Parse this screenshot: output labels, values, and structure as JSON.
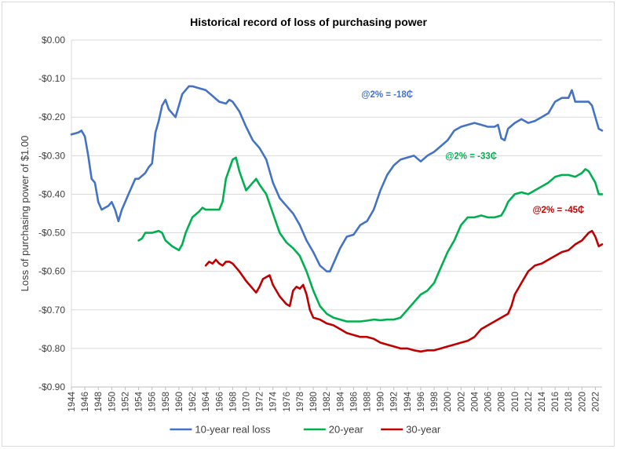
{
  "chart_data": {
    "type": "line",
    "title": "Historical record of loss of purchasing power",
    "xlabel": "",
    "ylabel": "Loss of purchasing power of $1.00",
    "xlim": [
      1944,
      2023
    ],
    "ylim": [
      -0.9,
      0.0
    ],
    "y_ticks": [
      0.0,
      -0.1,
      -0.2,
      -0.3,
      -0.4,
      -0.5,
      -0.6,
      -0.7,
      -0.8,
      -0.9
    ],
    "y_tick_labels": [
      "$0.00",
      "-$0.10",
      "-$0.20",
      "-$0.30",
      "-$0.40",
      "-$0.50",
      "-$0.60",
      "-$0.70",
      "-$0.80",
      "-$0.90"
    ],
    "x_ticks": [
      "1944",
      "1946",
      "1948",
      "1950",
      "1952",
      "1954",
      "1956",
      "1958",
      "1960",
      "1962",
      "1964",
      "1966",
      "1968",
      "1970",
      "1972",
      "1974",
      "1976",
      "1978",
      "1980",
      "1982",
      "1984",
      "1986",
      "1988",
      "1990",
      "1992",
      "1994",
      "1996",
      "1998",
      "2000",
      "2002",
      "2004",
      "2006",
      "2008",
      "2010",
      "2012",
      "2014",
      "2016",
      "2018",
      "2020",
      "2022"
    ],
    "grid": true,
    "legend_position": "bottom",
    "series": [
      {
        "name": "10-year real loss",
        "color": "#4472c4",
        "points": [
          [
            1944,
            -0.245
          ],
          [
            1945,
            -0.24
          ],
          [
            1945.5,
            -0.235
          ],
          [
            1946,
            -0.25
          ],
          [
            1946.5,
            -0.3
          ],
          [
            1947,
            -0.36
          ],
          [
            1947.5,
            -0.37
          ],
          [
            1948,
            -0.42
          ],
          [
            1948.5,
            -0.44
          ],
          [
            1949,
            -0.435
          ],
          [
            1949.5,
            -0.43
          ],
          [
            1950,
            -0.42
          ],
          [
            1950.5,
            -0.44
          ],
          [
            1951,
            -0.47
          ],
          [
            1951.5,
            -0.44
          ],
          [
            1952,
            -0.42
          ],
          [
            1952.5,
            -0.4
          ],
          [
            1953,
            -0.38
          ],
          [
            1953.5,
            -0.36
          ],
          [
            1954,
            -0.36
          ],
          [
            1955,
            -0.345
          ],
          [
            1955.5,
            -0.33
          ],
          [
            1956,
            -0.32
          ],
          [
            1956.5,
            -0.24
          ],
          [
            1957,
            -0.21
          ],
          [
            1957.5,
            -0.17
          ],
          [
            1958,
            -0.155
          ],
          [
            1958.5,
            -0.18
          ],
          [
            1959,
            -0.19
          ],
          [
            1959.5,
            -0.2
          ],
          [
            1960,
            -0.17
          ],
          [
            1960.5,
            -0.14
          ],
          [
            1961,
            -0.13
          ],
          [
            1961.5,
            -0.12
          ],
          [
            1962,
            -0.12
          ],
          [
            1963,
            -0.125
          ],
          [
            1964,
            -0.13
          ],
          [
            1965,
            -0.145
          ],
          [
            1966,
            -0.16
          ],
          [
            1967,
            -0.165
          ],
          [
            1967.5,
            -0.155
          ],
          [
            1968,
            -0.16
          ],
          [
            1969,
            -0.185
          ],
          [
            1970,
            -0.225
          ],
          [
            1971,
            -0.26
          ],
          [
            1972,
            -0.28
          ],
          [
            1973,
            -0.31
          ],
          [
            1974,
            -0.37
          ],
          [
            1975,
            -0.41
          ],
          [
            1976,
            -0.43
          ],
          [
            1977,
            -0.45
          ],
          [
            1978,
            -0.48
          ],
          [
            1979,
            -0.52
          ],
          [
            1980,
            -0.55
          ],
          [
            1981,
            -0.585
          ],
          [
            1982,
            -0.6
          ],
          [
            1982.5,
            -0.6
          ],
          [
            1983,
            -0.58
          ],
          [
            1984,
            -0.54
          ],
          [
            1985,
            -0.51
          ],
          [
            1986,
            -0.505
          ],
          [
            1987,
            -0.48
          ],
          [
            1988,
            -0.47
          ],
          [
            1989,
            -0.44
          ],
          [
            1990,
            -0.39
          ],
          [
            1991,
            -0.35
          ],
          [
            1992,
            -0.325
          ],
          [
            1993,
            -0.31
          ],
          [
            1994,
            -0.305
          ],
          [
            1995,
            -0.3
          ],
          [
            1996,
            -0.315
          ],
          [
            1997,
            -0.3
          ],
          [
            1998,
            -0.29
          ],
          [
            1999,
            -0.275
          ],
          [
            2000,
            -0.26
          ],
          [
            2001,
            -0.235
          ],
          [
            2002,
            -0.225
          ],
          [
            2003,
            -0.22
          ],
          [
            2004,
            -0.215
          ],
          [
            2005,
            -0.22
          ],
          [
            2006,
            -0.225
          ],
          [
            2007,
            -0.225
          ],
          [
            2007.5,
            -0.22
          ],
          [
            2008,
            -0.255
          ],
          [
            2008.5,
            -0.26
          ],
          [
            2009,
            -0.23
          ],
          [
            2010,
            -0.215
          ],
          [
            2011,
            -0.205
          ],
          [
            2012,
            -0.215
          ],
          [
            2013,
            -0.21
          ],
          [
            2014,
            -0.2
          ],
          [
            2015,
            -0.19
          ],
          [
            2016,
            -0.16
          ],
          [
            2017,
            -0.15
          ],
          [
            2018,
            -0.15
          ],
          [
            2018.5,
            -0.13
          ],
          [
            2019,
            -0.16
          ],
          [
            2020,
            -0.16
          ],
          [
            2021,
            -0.16
          ],
          [
            2021.5,
            -0.17
          ],
          [
            2022,
            -0.2
          ],
          [
            2022.5,
            -0.23
          ],
          [
            2023,
            -0.235
          ]
        ]
      },
      {
        "name": "20-year",
        "color": "#00b050",
        "points": [
          [
            1954,
            -0.52
          ],
          [
            1954.5,
            -0.515
          ],
          [
            1955,
            -0.5
          ],
          [
            1956,
            -0.5
          ],
          [
            1957,
            -0.495
          ],
          [
            1957.5,
            -0.5
          ],
          [
            1958,
            -0.52
          ],
          [
            1959,
            -0.535
          ],
          [
            1960,
            -0.545
          ],
          [
            1960.5,
            -0.53
          ],
          [
            1961,
            -0.5
          ],
          [
            1962,
            -0.46
          ],
          [
            1963,
            -0.445
          ],
          [
            1963.5,
            -0.435
          ],
          [
            1964,
            -0.44
          ],
          [
            1965,
            -0.44
          ],
          [
            1966,
            -0.44
          ],
          [
            1966.5,
            -0.42
          ],
          [
            1967,
            -0.36
          ],
          [
            1968,
            -0.31
          ],
          [
            1968.5,
            -0.305
          ],
          [
            1969,
            -0.34
          ],
          [
            1970,
            -0.39
          ],
          [
            1971,
            -0.37
          ],
          [
            1971.5,
            -0.36
          ],
          [
            1972,
            -0.375
          ],
          [
            1973,
            -0.4
          ],
          [
            1974,
            -0.45
          ],
          [
            1975,
            -0.5
          ],
          [
            1976,
            -0.525
          ],
          [
            1977,
            -0.54
          ],
          [
            1978,
            -0.56
          ],
          [
            1979,
            -0.6
          ],
          [
            1980,
            -0.65
          ],
          [
            1981,
            -0.69
          ],
          [
            1982,
            -0.71
          ],
          [
            1983,
            -0.72
          ],
          [
            1984,
            -0.725
          ],
          [
            1985,
            -0.73
          ],
          [
            1986,
            -0.73
          ],
          [
            1987,
            -0.73
          ],
          [
            1988,
            -0.728
          ],
          [
            1989,
            -0.725
          ],
          [
            1990,
            -0.727
          ],
          [
            1991,
            -0.725
          ],
          [
            1992,
            -0.725
          ],
          [
            1993,
            -0.72
          ],
          [
            1994,
            -0.7
          ],
          [
            1995,
            -0.68
          ],
          [
            1996,
            -0.66
          ],
          [
            1997,
            -0.65
          ],
          [
            1998,
            -0.63
          ],
          [
            1999,
            -0.59
          ],
          [
            2000,
            -0.55
          ],
          [
            2001,
            -0.52
          ],
          [
            2002,
            -0.48
          ],
          [
            2003,
            -0.46
          ],
          [
            2004,
            -0.46
          ],
          [
            2005,
            -0.455
          ],
          [
            2006,
            -0.46
          ],
          [
            2007,
            -0.46
          ],
          [
            2008,
            -0.455
          ],
          [
            2008.5,
            -0.44
          ],
          [
            2009,
            -0.42
          ],
          [
            2010,
            -0.4
          ],
          [
            2011,
            -0.395
          ],
          [
            2012,
            -0.4
          ],
          [
            2013,
            -0.39
          ],
          [
            2014,
            -0.38
          ],
          [
            2015,
            -0.37
          ],
          [
            2016,
            -0.355
          ],
          [
            2017,
            -0.35
          ],
          [
            2018,
            -0.35
          ],
          [
            2019,
            -0.355
          ],
          [
            2020,
            -0.345
          ],
          [
            2020.5,
            -0.335
          ],
          [
            2021,
            -0.34
          ],
          [
            2022,
            -0.37
          ],
          [
            2022.5,
            -0.4
          ],
          [
            2023,
            -0.4
          ]
        ]
      },
      {
        "name": "30-year",
        "color": "#c00000",
        "points": [
          [
            1964,
            -0.585
          ],
          [
            1964.5,
            -0.575
          ],
          [
            1965,
            -0.58
          ],
          [
            1965.5,
            -0.57
          ],
          [
            1966,
            -0.58
          ],
          [
            1966.5,
            -0.585
          ],
          [
            1967,
            -0.575
          ],
          [
            1967.5,
            -0.575
          ],
          [
            1968,
            -0.58
          ],
          [
            1969,
            -0.6
          ],
          [
            1970,
            -0.625
          ],
          [
            1971,
            -0.645
          ],
          [
            1971.5,
            -0.655
          ],
          [
            1972,
            -0.64
          ],
          [
            1972.5,
            -0.62
          ],
          [
            1973,
            -0.615
          ],
          [
            1973.5,
            -0.61
          ],
          [
            1974,
            -0.635
          ],
          [
            1975,
            -0.665
          ],
          [
            1976,
            -0.685
          ],
          [
            1976.5,
            -0.69
          ],
          [
            1977,
            -0.65
          ],
          [
            1977.5,
            -0.64
          ],
          [
            1978,
            -0.645
          ],
          [
            1978.5,
            -0.635
          ],
          [
            1979,
            -0.66
          ],
          [
            1979.5,
            -0.7
          ],
          [
            1980,
            -0.72
          ],
          [
            1981,
            -0.725
          ],
          [
            1982,
            -0.735
          ],
          [
            1983,
            -0.74
          ],
          [
            1984,
            -0.75
          ],
          [
            1985,
            -0.76
          ],
          [
            1986,
            -0.765
          ],
          [
            1987,
            -0.77
          ],
          [
            1988,
            -0.77
          ],
          [
            1989,
            -0.775
          ],
          [
            1990,
            -0.785
          ],
          [
            1991,
            -0.79
          ],
          [
            1992,
            -0.795
          ],
          [
            1993,
            -0.8
          ],
          [
            1994,
            -0.8
          ],
          [
            1995,
            -0.805
          ],
          [
            1996,
            -0.808
          ],
          [
            1997,
            -0.805
          ],
          [
            1998,
            -0.805
          ],
          [
            1999,
            -0.8
          ],
          [
            2000,
            -0.795
          ],
          [
            2001,
            -0.79
          ],
          [
            2002,
            -0.785
          ],
          [
            2003,
            -0.78
          ],
          [
            2004,
            -0.77
          ],
          [
            2005,
            -0.75
          ],
          [
            2006,
            -0.74
          ],
          [
            2007,
            -0.73
          ],
          [
            2008,
            -0.72
          ],
          [
            2009,
            -0.71
          ],
          [
            2009.5,
            -0.69
          ],
          [
            2010,
            -0.66
          ],
          [
            2011,
            -0.63
          ],
          [
            2012,
            -0.6
          ],
          [
            2013,
            -0.585
          ],
          [
            2014,
            -0.58
          ],
          [
            2015,
            -0.57
          ],
          [
            2016,
            -0.56
          ],
          [
            2017,
            -0.55
          ],
          [
            2018,
            -0.545
          ],
          [
            2019,
            -0.53
          ],
          [
            2020,
            -0.52
          ],
          [
            2021,
            -0.5
          ],
          [
            2021.5,
            -0.495
          ],
          [
            2022,
            -0.51
          ],
          [
            2022.5,
            -0.535
          ],
          [
            2023,
            -0.53
          ]
        ]
      }
    ],
    "annotations": [
      {
        "text": "@2% = -18₵",
        "color": "#4472c4",
        "x": 1991,
        "y": -0.14
      },
      {
        "text": "@2% = -33₵",
        "color": "#00b050",
        "x": 2003.5,
        "y": -0.3
      },
      {
        "text": "@2% = -45₵",
        "color": "#c00000",
        "x": 2016.5,
        "y": -0.44
      }
    ]
  }
}
